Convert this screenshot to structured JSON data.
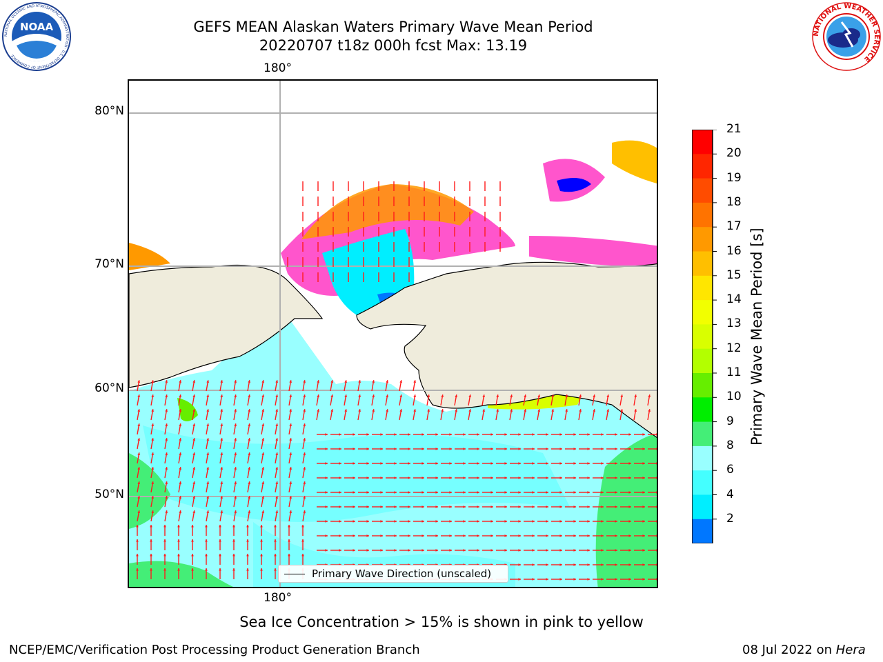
{
  "title": {
    "line1": "GEFS MEAN Alaskan Waters Primary Wave Mean Period",
    "line2": "20220707 t18z 000h fcst   Max: 13.19"
  },
  "map": {
    "top_lon_label": "180°",
    "bottom_lon_label": "180°",
    "lat_labels": [
      "80°N",
      "70°N",
      "60°N",
      "50°N"
    ],
    "legend_label": "Primary Wave Direction (unscaled)",
    "colors": {
      "land": "#efecdc",
      "ocean_base": "#66ffff",
      "grid": "#b0b0b0",
      "arrow": "#ff1a1a"
    }
  },
  "colorbar": {
    "label": "Primary Wave Mean Period [s]",
    "ticks": [
      "21",
      "20",
      "19",
      "18",
      "17",
      "16",
      "15",
      "14",
      "13",
      "12",
      "11",
      "10",
      "9",
      "8",
      "6",
      "4",
      "2"
    ],
    "colors": [
      "#ff0000",
      "#ff2600",
      "#ff4c00",
      "#ff7300",
      "#ff9900",
      "#ffbf00",
      "#ffe600",
      "#f2ff00",
      "#d9ff00",
      "#b3ff00",
      "#66ee00",
      "#00ee00",
      "#44ee77",
      "#99ffff",
      "#44ffff",
      "#00eeff",
      "#0077ff"
    ],
    "under_color": "#0000ff"
  },
  "caption": "Sea Ice Concentration > 15% is shown in pink to yellow",
  "footer": {
    "left": "NCEP/EMC/Verification Post Processing Product Generation Branch",
    "right_date": "08 Jul 2022 on ",
    "right_host": "Hera"
  },
  "logos": {
    "noaa": "NOAA",
    "nws_ring": "NATIONAL WEATHER SERVICE",
    "noaa_ring": "NATIONAL OCEANIC AND ATMOSPHERIC ADMINISTRATION · U.S. DEPARTMENT OF COMMERCE"
  }
}
